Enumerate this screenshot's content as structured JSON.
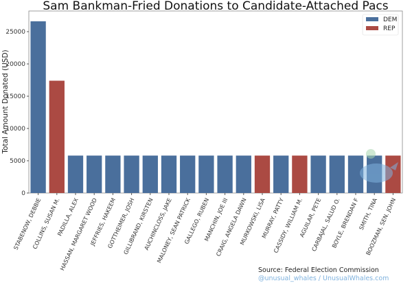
{
  "chart_data": {
    "type": "bar",
    "title": "Sam Bankman-Fried Donations to Candidate-Attached Pacs",
    "xlabel": "",
    "ylabel": "Total Amount Donated (USD)",
    "ylim": [
      0,
      28200
    ],
    "yticks": [
      0,
      5000,
      10000,
      15000,
      20000,
      25000
    ],
    "grid": false,
    "legend_position": "top-right",
    "legend": [
      {
        "label": "DEM",
        "color": "#4a6f9c"
      },
      {
        "label": "REP",
        "color": "#ab4a43"
      }
    ],
    "categories": [
      "STABENOW, DEBBIE",
      "COLLINS, SUSAN M.",
      "PADILLA, ALEX",
      "HASSAN, MARGARET WOOD",
      "JEFFRIES, HAKEEM",
      "GOTTHEIMER, JOSH",
      "GILLIBRAND, KIRSTEN",
      "AUCHINCLOSS, JAKE",
      "MALONEY, SEAN PATRICK",
      "GALLEGO, RUBEN",
      "MANCHIN, JOE III",
      "CRAIG, ANGELA DAWN",
      "MURKOWSKI, LISA",
      "MURRAY, PATTY",
      "CASSIDY, WILLIAM M.",
      "AGUILAR, PETE",
      "CARBAJAL, SALUD O.",
      "BOYLE, BRENDAN F",
      "SMITH, TINA",
      "BOOZMAN, SEN. JOHN"
    ],
    "values": [
      26600,
      17400,
      5800,
      5800,
      5800,
      5800,
      5800,
      5800,
      5800,
      5800,
      5800,
      5800,
      5800,
      5800,
      5800,
      5800,
      5800,
      5800,
      5800,
      5800
    ],
    "party": [
      "DEM",
      "REP",
      "DEM",
      "DEM",
      "DEM",
      "DEM",
      "DEM",
      "DEM",
      "DEM",
      "DEM",
      "DEM",
      "DEM",
      "REP",
      "DEM",
      "REP",
      "DEM",
      "DEM",
      "DEM",
      "DEM",
      "REP"
    ]
  },
  "footer": {
    "source": "Source: Federal Election Commission",
    "credit": "@unusual_whales / UnusualWhales.com"
  }
}
